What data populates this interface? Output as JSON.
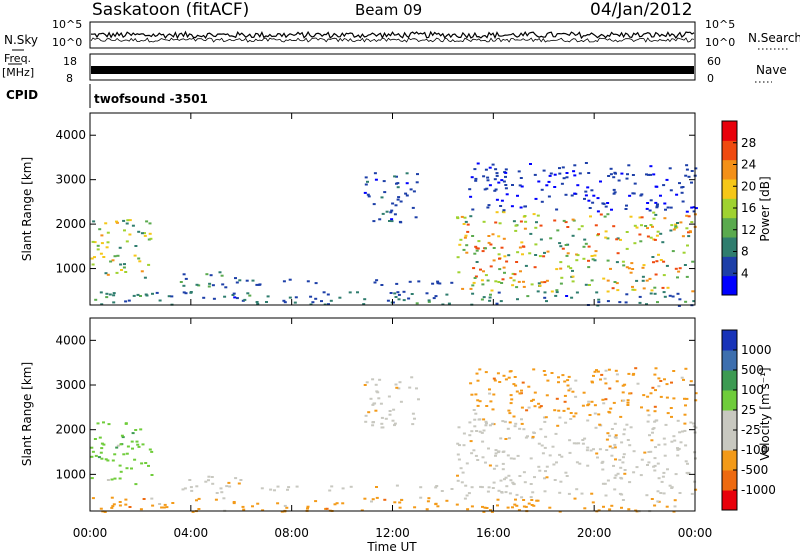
{
  "header": {
    "station": "Saskatoon (fitACF)",
    "beam": "Beam 09",
    "date": "04/Jan/2012"
  },
  "top_panels": {
    "nsky_label": "N.Sky",
    "nsky_ticks": [
      "10^5",
      "10^0"
    ],
    "nsearch_label": "N.Search",
    "nsearch_ticks": [
      "10^5",
      "10^0"
    ],
    "freq_label_1": "Freq.",
    "freq_label_2": "[MHz]",
    "freq_ticks": [
      "18",
      "8"
    ],
    "nave_label": "Nave",
    "nave_ticks": [
      "60",
      "0"
    ],
    "cpid_label": "CPID",
    "cpid_text": "twofsound -3501"
  },
  "colors": {
    "power_scale": [
      "#0000ff",
      "#1d3fa8",
      "#2f7d6e",
      "#5aaa4e",
      "#9fd230",
      "#f5c718",
      "#f39018",
      "#ef4a10",
      "#e8000b"
    ],
    "velocity_scale": [
      "#e8000b",
      "#ee6a10",
      "#f39a18",
      "#c8c8c0",
      "#c8c8c0",
      "#6fcc3a",
      "#3c9a52",
      "#3d6fae",
      "#1833b8"
    ]
  },
  "chart_data": [
    {
      "type": "heatmap",
      "title": "Power",
      "ylabel": "Slant Range [km]",
      "xlabel": "Time UT",
      "x_ticks": [
        "00:00",
        "04:00",
        "08:00",
        "12:00",
        "16:00",
        "20:00",
        "00:00"
      ],
      "y_ticks": [
        "1000",
        "2000",
        "3000",
        "4000"
      ],
      "ylim": [
        180,
        4500
      ],
      "colorbar_label": "Power [dB]",
      "colorbar_ticks": [
        "4",
        "8",
        "12",
        "16",
        "20",
        "24",
        "28"
      ],
      "colorbar_range": [
        0,
        30
      ],
      "scatter_regions": [
        {
          "t": [
            0.0,
            2.4
          ],
          "r": [
            800,
            2200
          ],
          "peak_db": 17
        },
        {
          "t": [
            3.5,
            6.0
          ],
          "r": [
            600,
            1000
          ],
          "peak_db": 10
        },
        {
          "t": [
            5.0,
            14.5
          ],
          "r": [
            650,
            780
          ],
          "peak_db": 6
        },
        {
          "t": [
            10.8,
            13.0
          ],
          "r": [
            2000,
            3200
          ],
          "peak_db": 6
        },
        {
          "t": [
            14.5,
            24.0
          ],
          "r": [
            500,
            2300
          ],
          "peak_db": 20
        },
        {
          "t": [
            15.0,
            24.0
          ],
          "r": [
            2300,
            3400
          ],
          "peak_db": 5
        },
        {
          "t": [
            0.0,
            24.0
          ],
          "r": [
            180,
            500
          ],
          "peak_db": 8
        }
      ]
    },
    {
      "type": "heatmap",
      "title": "Velocity",
      "ylabel": "Slant Range [km]",
      "xlabel": "Time UT",
      "x_ticks": [
        "00:00",
        "04:00",
        "08:00",
        "12:00",
        "16:00",
        "20:00",
        "00:00"
      ],
      "y_ticks": [
        "1000",
        "2000",
        "3000",
        "4000"
      ],
      "ylim": [
        180,
        4500
      ],
      "colorbar_label": "Velocity [m s⁻¹]",
      "colorbar_ticks": [
        "1000",
        "500",
        "100",
        "25",
        "-25",
        "-100",
        "-500",
        "-1000"
      ],
      "scatter_regions": [
        {
          "t": [
            0.0,
            2.4
          ],
          "r": [
            800,
            2200
          ],
          "vel": 40
        },
        {
          "t": [
            3.5,
            6.0
          ],
          "r": [
            600,
            1000
          ],
          "vel": 0
        },
        {
          "t": [
            5.0,
            14.5
          ],
          "r": [
            650,
            780
          ],
          "vel": 0
        },
        {
          "t": [
            10.8,
            13.0
          ],
          "r": [
            2000,
            3200
          ],
          "vel": 0
        },
        {
          "t": [
            14.5,
            24.0
          ],
          "r": [
            500,
            2300
          ],
          "vel": 0
        },
        {
          "t": [
            15.0,
            24.0
          ],
          "r": [
            2300,
            3400
          ],
          "vel": -100
        },
        {
          "t": [
            0.0,
            24.0
          ],
          "r": [
            180,
            500
          ],
          "vel": -80
        }
      ]
    }
  ]
}
